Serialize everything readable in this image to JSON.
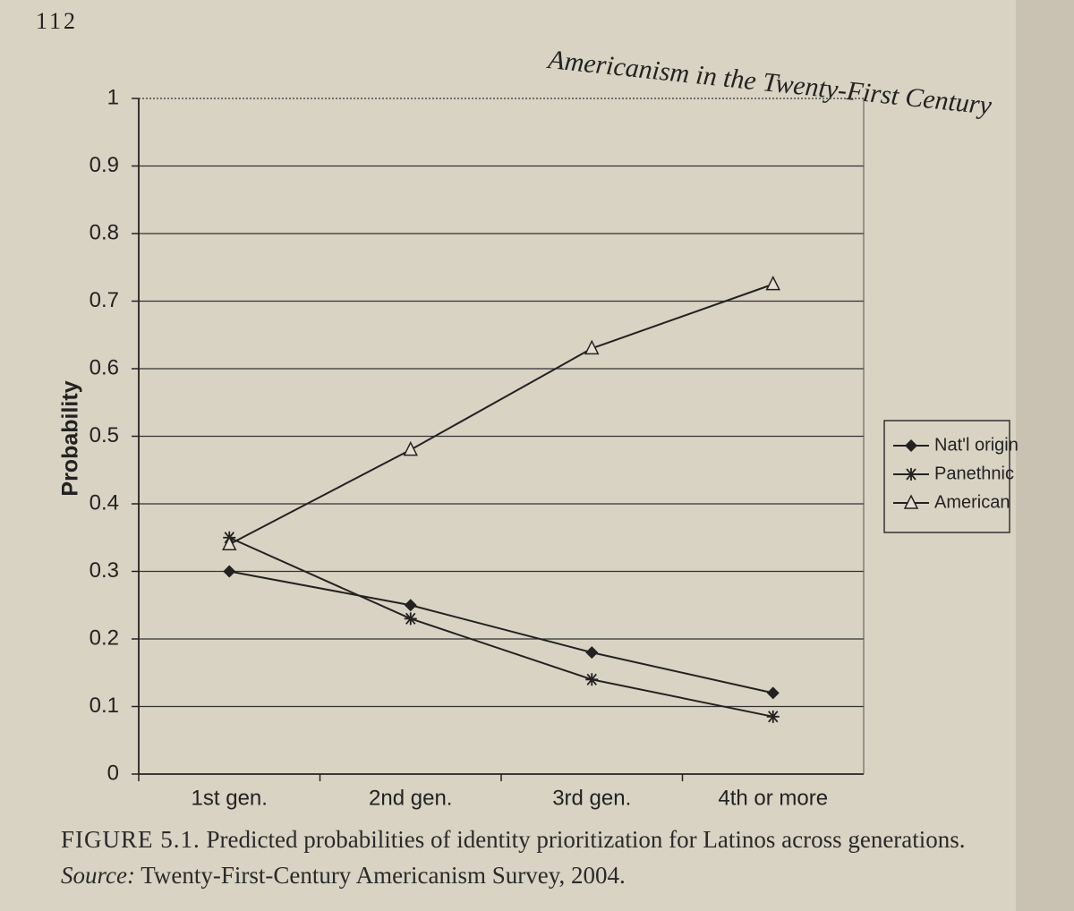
{
  "page_number": "112",
  "running_header": "Americanism in the Twenty-First Century",
  "chart_data": {
    "type": "line",
    "y_label": "Probability",
    "categories": [
      "1st gen.",
      "2nd gen.",
      "3rd gen.",
      "4th or more"
    ],
    "series": [
      {
        "name": "Nat'l origin",
        "color": "#222222",
        "marker": "diamond",
        "values": [
          0.3,
          0.25,
          0.18,
          0.12
        ]
      },
      {
        "name": "Panethnic",
        "color": "#222222",
        "marker": "star",
        "values": [
          0.35,
          0.23,
          0.14,
          0.085
        ]
      },
      {
        "name": "American",
        "color": "#222222",
        "marker": "triangle",
        "values": [
          0.34,
          0.48,
          0.63,
          0.725
        ]
      }
    ],
    "ylim": [
      0,
      1
    ],
    "yticks": [
      0,
      0.1,
      0.2,
      0.3,
      0.4,
      0.5,
      0.6,
      0.7,
      0.8,
      0.9,
      1
    ],
    "grid": true,
    "legend": "right",
    "caption": {
      "label": "FIGURE 5.1.",
      "text": "Predicted probabilities of identity prioritization for Latinos across generations.",
      "source_label": "Source:",
      "source": "Twenty-First-Century Americanism Survey, 2004."
    }
  }
}
